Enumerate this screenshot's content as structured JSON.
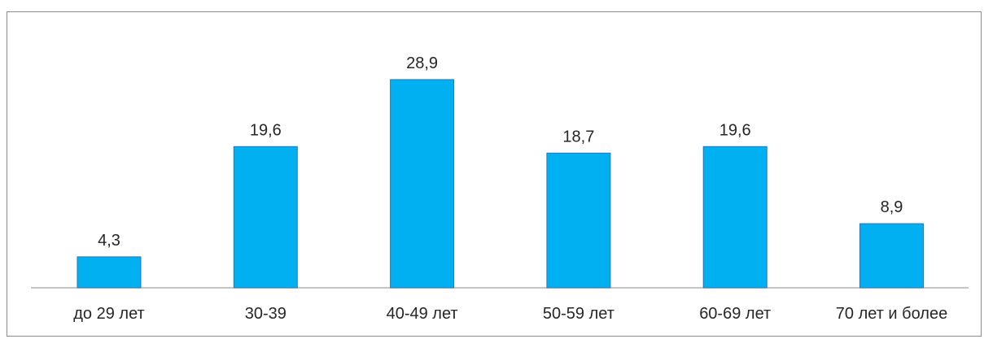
{
  "colors": {
    "bar": "#00b0f0",
    "bar_edge": "#2e75b6",
    "axis": "#b0b0b0",
    "text": "#262626"
  },
  "chart_data": {
    "type": "bar",
    "categories": [
      "до 29 лет",
      "30-39",
      "40-49 лет",
      "50-59 лет",
      "60-69 лет",
      "70 лет и более"
    ],
    "values": [
      4.3,
      19.6,
      28.9,
      18.7,
      19.6,
      8.9
    ],
    "data_labels": [
      "4,3",
      "19,6",
      "28,9",
      "18,7",
      "19,6",
      "8,9"
    ],
    "title": "",
    "xlabel": "",
    "ylabel": "",
    "ylim": [
      0,
      34
    ],
    "grid": false,
    "legend": "none"
  }
}
